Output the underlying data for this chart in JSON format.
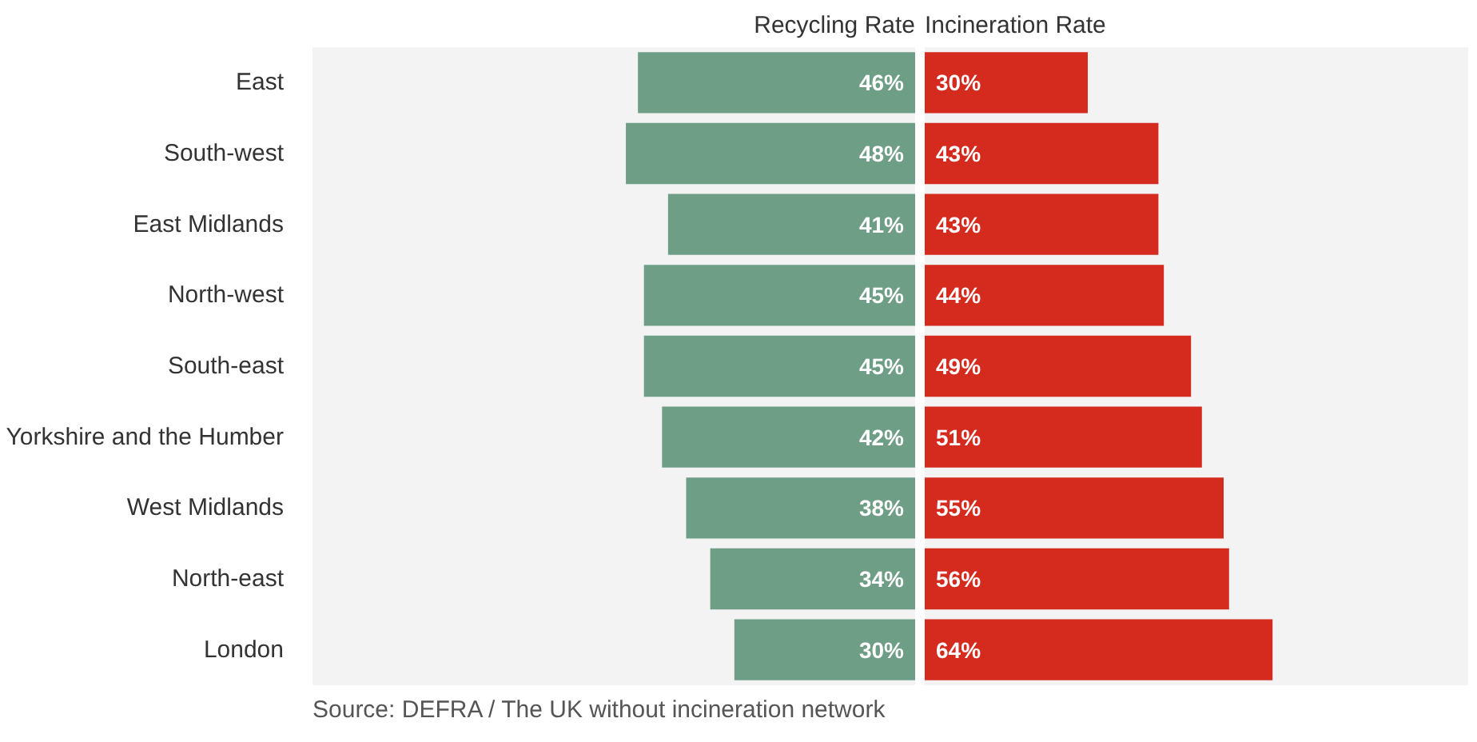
{
  "chart_data": [
    {
      "type": "bar",
      "orientation": "horizontal",
      "title": "Recycling Rate",
      "categories": [
        "East",
        "South-west",
        "East Midlands",
        "North-west",
        "South-east",
        "Yorkshire and the Humber",
        "West Midlands",
        "North-east",
        "London"
      ],
      "values": [
        46,
        48,
        41,
        45,
        45,
        42,
        38,
        34,
        30
      ],
      "value_labels": [
        "46%",
        "48%",
        "41%",
        "45%",
        "45%",
        "42%",
        "38%",
        "34%",
        "30%"
      ],
      "color": "#6f9e87",
      "xlim": [
        100,
        0
      ],
      "tick_labels": "y",
      "grid": false,
      "annotations": [
        "Source: DEFRA / The UK without incineration network"
      ]
    },
    {
      "type": "bar",
      "orientation": "horizontal",
      "title": "Incineration Rate",
      "categories": [
        null,
        null,
        null,
        null,
        null,
        null,
        null,
        null,
        null
      ],
      "values": [
        30,
        43,
        43,
        44,
        49,
        51,
        55,
        56,
        64
      ],
      "value_labels": [
        "30%",
        "43%",
        "43%",
        "44%",
        "49%",
        "51%",
        "55%",
        "56%",
        "64%"
      ],
      "color": "#d42b1e",
      "xlim": [
        0,
        100
      ],
      "tick_labels": false,
      "grid": false
    }
  ]
}
